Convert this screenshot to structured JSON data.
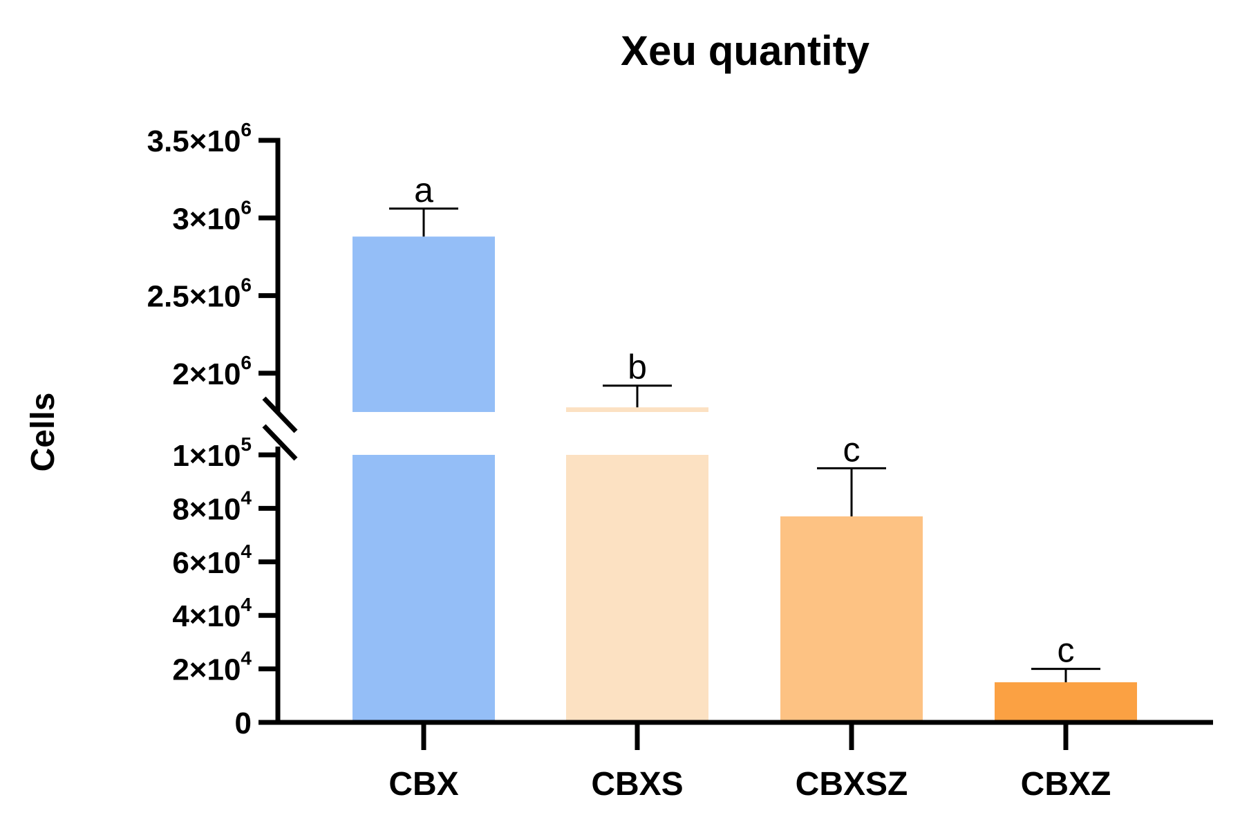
{
  "chart_data": {
    "type": "bar",
    "title": "Xeu quantity",
    "xlabel": "",
    "ylabel": "Cells",
    "categories": [
      "CBX",
      "CBXS",
      "CBXSZ",
      "CBXZ"
    ],
    "values": [
      2880000,
      1780000,
      77000,
      15000
    ],
    "error_upper": [
      3060000,
      1920000,
      95000,
      20000
    ],
    "significance_letters": [
      "a",
      "b",
      "c",
      "c"
    ],
    "colors": [
      "#94BEF7",
      "#FCE1C2",
      "#FDC283",
      "#FBA143"
    ],
    "y_axis_break": true,
    "lower_segment": {
      "range": [
        0,
        100000
      ],
      "ticks": [
        {
          "value": 0,
          "mantissa": "0",
          "exponent": ""
        },
        {
          "value": 20000,
          "mantissa": "2×10",
          "exponent": "4"
        },
        {
          "value": 40000,
          "mantissa": "4×10",
          "exponent": "4"
        },
        {
          "value": 60000,
          "mantissa": "6×10",
          "exponent": "4"
        },
        {
          "value": 80000,
          "mantissa": "8×10",
          "exponent": "4"
        },
        {
          "value": 100000,
          "mantissa": "1×10",
          "exponent": "5"
        }
      ]
    },
    "upper_segment": {
      "range": [
        1750000,
        3500000
      ],
      "ticks": [
        {
          "value": 2000000,
          "mantissa": "2×10",
          "exponent": "6"
        },
        {
          "value": 2500000,
          "mantissa": "2.5×10",
          "exponent": "6"
        },
        {
          "value": 3000000,
          "mantissa": "3×10",
          "exponent": "6"
        },
        {
          "value": 3500000,
          "mantissa": "3.5×10",
          "exponent": "6"
        }
      ]
    },
    "grid": false,
    "legend": "none"
  }
}
